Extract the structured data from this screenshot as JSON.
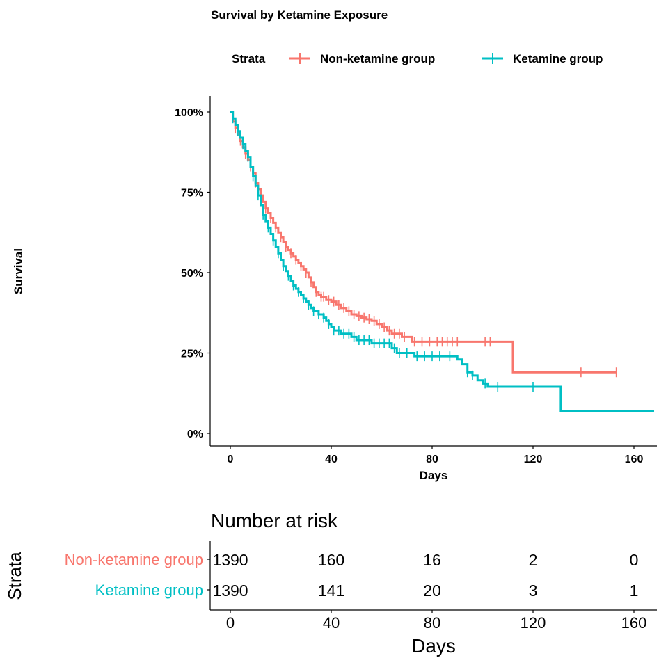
{
  "chart_data": [
    {
      "type": "line",
      "subtype": "kaplan-meier",
      "title": "Survival by Ketamine Exposure",
      "xlabel": "Days",
      "ylabel": "Survival",
      "xlim": [
        0,
        168
      ],
      "ylim": [
        0,
        1
      ],
      "x_ticks": [
        0,
        40,
        80,
        120,
        160
      ],
      "y_ticks": [
        0,
        0.25,
        0.5,
        0.75,
        1
      ],
      "y_tick_labels": [
        "0%",
        "25%",
        "50%",
        "75%",
        "100%"
      ],
      "legend": {
        "title": "Strata",
        "placement": "top",
        "entries": [
          "Non-ketamine group",
          "Ketamine group"
        ]
      },
      "grid": false,
      "series": [
        {
          "name": "Non-ketamine group",
          "color": "#F8766D",
          "steps": [
            [
              0,
              1.0
            ],
            [
              1,
              0.97
            ],
            [
              2,
              0.95
            ],
            [
              3,
              0.93
            ],
            [
              4,
              0.91
            ],
            [
              5,
              0.89
            ],
            [
              6,
              0.87
            ],
            [
              7,
              0.85
            ],
            [
              8,
              0.83
            ],
            [
              9,
              0.81
            ],
            [
              10,
              0.78
            ],
            [
              11,
              0.76
            ],
            [
              12,
              0.74
            ],
            [
              13,
              0.72
            ],
            [
              14,
              0.7
            ],
            [
              15,
              0.685
            ],
            [
              16,
              0.67
            ],
            [
              17,
              0.655
            ],
            [
              18,
              0.64
            ],
            [
              19,
              0.625
            ],
            [
              20,
              0.61
            ],
            [
              21,
              0.595
            ],
            [
              22,
              0.58
            ],
            [
              23,
              0.57
            ],
            [
              24,
              0.56
            ],
            [
              25,
              0.55
            ],
            [
              26,
              0.54
            ],
            [
              27,
              0.53
            ],
            [
              28,
              0.52
            ],
            [
              29,
              0.51
            ],
            [
              30,
              0.5
            ],
            [
              31,
              0.485
            ],
            [
              32,
              0.47
            ],
            [
              33,
              0.455
            ],
            [
              34,
              0.44
            ],
            [
              35,
              0.43
            ],
            [
              36,
              0.425
            ],
            [
              38,
              0.415
            ],
            [
              40,
              0.41
            ],
            [
              42,
              0.4
            ],
            [
              44,
              0.39
            ],
            [
              46,
              0.38
            ],
            [
              48,
              0.37
            ],
            [
              50,
              0.365
            ],
            [
              52,
              0.36
            ],
            [
              54,
              0.355
            ],
            [
              56,
              0.35
            ],
            [
              58,
              0.34
            ],
            [
              60,
              0.33
            ],
            [
              62,
              0.32
            ],
            [
              64,
              0.31
            ],
            [
              68,
              0.3
            ],
            [
              72,
              0.285
            ],
            [
              112,
              0.19
            ],
            [
              153,
              0.19
            ]
          ],
          "censor_x": [
            2,
            4,
            6,
            8,
            10,
            12,
            14,
            16,
            18,
            20,
            22,
            24,
            26,
            28,
            30,
            32,
            34,
            36,
            37,
            39,
            41,
            43,
            45,
            47,
            49,
            51,
            53,
            55,
            57,
            59,
            61,
            63,
            65,
            67,
            69,
            73,
            76,
            79,
            82,
            84,
            86,
            88,
            90,
            101,
            103,
            139,
            153
          ]
        },
        {
          "name": "Ketamine group",
          "color": "#00BFC4",
          "steps": [
            [
              0,
              1.0
            ],
            [
              1,
              0.98
            ],
            [
              2,
              0.96
            ],
            [
              3,
              0.94
            ],
            [
              4,
              0.92
            ],
            [
              5,
              0.9
            ],
            [
              6,
              0.88
            ],
            [
              7,
              0.86
            ],
            [
              8,
              0.83
            ],
            [
              9,
              0.8
            ],
            [
              10,
              0.77
            ],
            [
              11,
              0.74
            ],
            [
              12,
              0.71
            ],
            [
              13,
              0.68
            ],
            [
              14,
              0.66
            ],
            [
              15,
              0.64
            ],
            [
              16,
              0.62
            ],
            [
              17,
              0.6
            ],
            [
              18,
              0.58
            ],
            [
              19,
              0.56
            ],
            [
              20,
              0.54
            ],
            [
              21,
              0.52
            ],
            [
              22,
              0.505
            ],
            [
              23,
              0.49
            ],
            [
              24,
              0.475
            ],
            [
              25,
              0.46
            ],
            [
              26,
              0.45
            ],
            [
              27,
              0.44
            ],
            [
              28,
              0.43
            ],
            [
              29,
              0.42
            ],
            [
              30,
              0.41
            ],
            [
              31,
              0.4
            ],
            [
              32,
              0.39
            ],
            [
              33,
              0.38
            ],
            [
              35,
              0.37
            ],
            [
              37,
              0.36
            ],
            [
              38,
              0.35
            ],
            [
              39,
              0.34
            ],
            [
              40,
              0.33
            ],
            [
              41,
              0.32
            ],
            [
              44,
              0.31
            ],
            [
              48,
              0.3
            ],
            [
              50,
              0.29
            ],
            [
              56,
              0.28
            ],
            [
              64,
              0.265
            ],
            [
              66,
              0.25
            ],
            [
              73,
              0.24
            ],
            [
              90,
              0.23
            ],
            [
              92,
              0.215
            ],
            [
              94,
              0.19
            ],
            [
              96,
              0.18
            ],
            [
              98,
              0.165
            ],
            [
              100,
              0.155
            ],
            [
              102,
              0.145
            ],
            [
              131,
              0.07
            ],
            [
              168,
              0.07
            ]
          ],
          "censor_x": [
            1,
            3,
            5,
            7,
            9,
            11,
            13,
            15,
            17,
            19,
            21,
            23,
            25,
            27,
            29,
            31,
            33,
            35,
            37,
            39,
            41,
            43,
            45,
            47,
            49,
            51,
            53,
            55,
            57,
            59,
            61,
            63,
            65,
            67,
            70,
            74,
            77,
            80,
            83,
            87,
            94,
            96,
            101,
            106,
            120
          ]
        }
      ]
    },
    {
      "type": "table",
      "title": "Number at risk",
      "row_header_label": "Strata",
      "xlabel": "Days",
      "x_ticks": [
        0,
        40,
        80,
        120,
        160
      ],
      "rows": [
        {
          "name": "Non-ketamine group",
          "color": "#F8766D",
          "values": [
            "1390",
            "160",
            "16",
            "2",
            "0"
          ]
        },
        {
          "name": "Ketamine group",
          "color": "#00BFC4",
          "values": [
            "1390",
            "141",
            "20",
            "3",
            "1"
          ]
        }
      ]
    }
  ]
}
